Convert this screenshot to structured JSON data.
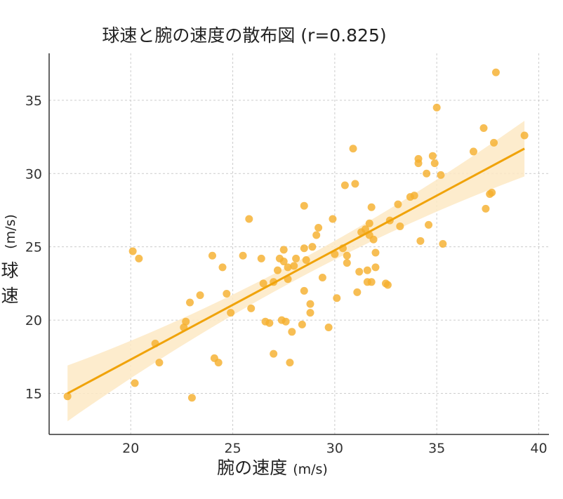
{
  "chart_data": {
    "type": "scatter",
    "title": "球速と腕の速度の散布図 (r=0.825)",
    "xlabel": "腕の速度",
    "xlabel_unit": "(m/s)",
    "ylabel": "球速",
    "ylabel_unit": "(m/s)",
    "xlim": [
      16,
      40.5
    ],
    "ylim": [
      12.2,
      38.2
    ],
    "x_ticks": [
      20,
      25,
      30,
      35,
      40
    ],
    "y_ticks": [
      15,
      20,
      25,
      30,
      35
    ],
    "grid": true,
    "point_color": "#F5B02E",
    "line_color": "#F0A30A",
    "band_color": "#FDE9C4",
    "regression": {
      "x_range": [
        16.9,
        39.3
      ],
      "y_start": 15.0,
      "y_end": 31.7,
      "band_width_ends": 1.9,
      "band_width_center": 0.6
    },
    "x": [
      16.9,
      20.1,
      20.2,
      20.4,
      21.2,
      21.4,
      22.6,
      22.7,
      22.9,
      23.0,
      23.4,
      24.0,
      24.1,
      24.3,
      24.5,
      24.7,
      24.9,
      25.5,
      25.8,
      25.9,
      26.4,
      26.5,
      26.6,
      26.8,
      27.0,
      27.0,
      27.2,
      27.3,
      27.4,
      27.5,
      27.5,
      27.6,
      27.7,
      27.7,
      27.8,
      27.9,
      28.0,
      28.1,
      28.4,
      28.5,
      28.5,
      28.5,
      28.6,
      28.8,
      28.8,
      28.9,
      29.1,
      29.2,
      29.4,
      29.7,
      29.9,
      30.0,
      30.1,
      30.4,
      30.5,
      30.6,
      30.6,
      30.9,
      31.0,
      31.1,
      31.2,
      31.3,
      31.5,
      31.6,
      31.6,
      31.7,
      31.7,
      31.8,
      31.8,
      31.9,
      32.0,
      32.0,
      32.5,
      32.6,
      32.7,
      33.1,
      33.2,
      33.7,
      33.9,
      34.1,
      34.1,
      34.2,
      34.5,
      34.6,
      34.8,
      34.9,
      35.0,
      35.2,
      35.3,
      36.8,
      37.3,
      37.4,
      37.6,
      37.7,
      37.8,
      37.9,
      39.3
    ],
    "y": [
      14.8,
      24.7,
      15.7,
      24.2,
      18.4,
      17.1,
      19.5,
      19.9,
      21.2,
      14.7,
      21.7,
      24.4,
      17.4,
      17.1,
      23.6,
      21.8,
      20.5,
      24.4,
      26.9,
      20.8,
      24.2,
      22.5,
      19.9,
      19.8,
      22.6,
      17.7,
      23.4,
      24.2,
      20.0,
      24.0,
      24.8,
      19.9,
      22.8,
      23.6,
      17.1,
      19.2,
      23.7,
      24.2,
      19.7,
      24.9,
      22.0,
      27.8,
      24.1,
      20.5,
      21.1,
      25.0,
      25.8,
      26.3,
      22.9,
      19.5,
      26.9,
      24.5,
      21.5,
      24.9,
      29.2,
      24.4,
      23.9,
      31.7,
      29.3,
      21.9,
      23.3,
      26.0,
      26.2,
      23.4,
      22.6,
      26.6,
      25.8,
      22.6,
      27.7,
      25.5,
      23.6,
      24.6,
      22.5,
      22.4,
      26.8,
      27.9,
      26.4,
      28.4,
      28.5,
      31.0,
      30.7,
      25.4,
      30.0,
      26.5,
      31.2,
      30.7,
      34.5,
      29.9,
      25.2,
      31.5,
      33.1,
      27.6,
      28.6,
      28.7,
      32.1,
      36.9,
      32.6
    ]
  }
}
